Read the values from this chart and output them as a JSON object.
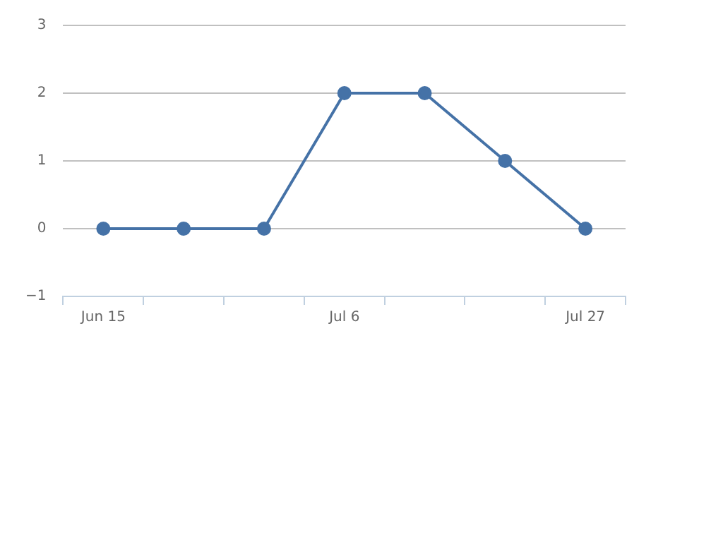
{
  "chart_data": {
    "type": "line",
    "categories": [
      "Jun 15",
      null,
      null,
      "Jul 6",
      null,
      null,
      "Jul 27"
    ],
    "values": [
      0,
      0,
      0,
      2,
      2,
      1,
      0
    ],
    "color": "#4572a7",
    "ylim": [
      -1,
      3
    ],
    "yticks": [
      -1,
      0,
      1,
      2,
      3
    ],
    "grid": "y",
    "marker": "circle",
    "line_style": "solid"
  }
}
